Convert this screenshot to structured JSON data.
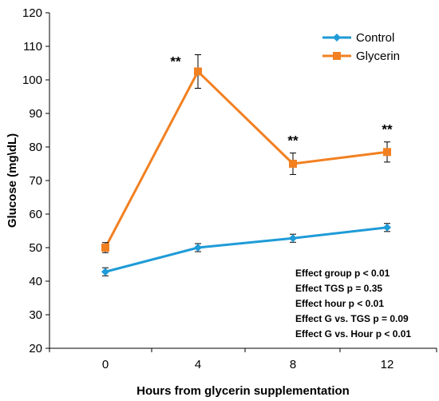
{
  "chart_data": {
    "type": "line",
    "title": "",
    "xlabel": "Hours from glycerin supplementation",
    "ylabel": "Glucose (mg\\dL)",
    "x": [
      0,
      4,
      8,
      12
    ],
    "x_ticks": [
      "0",
      "4",
      "8",
      "12"
    ],
    "ylim": [
      20,
      120
    ],
    "y_ticks": [
      "20",
      "30",
      "40",
      "50",
      "60",
      "70",
      "80",
      "90",
      "100",
      "110",
      "120"
    ],
    "grid": false,
    "legend_position": "top-right",
    "series": [
      {
        "name": "Control",
        "color": "#1f9bd7",
        "marker": "diamond",
        "values": [
          42.8,
          50.0,
          52.8,
          56.0
        ],
        "errors": [
          1.2,
          1.2,
          1.2,
          1.2
        ]
      },
      {
        "name": "Glycerin",
        "color": "#f28021",
        "marker": "square",
        "values": [
          50.0,
          102.5,
          75.0,
          78.5
        ],
        "errors": [
          1.5,
          5.0,
          3.2,
          3.0
        ]
      }
    ],
    "annotations": [
      {
        "text": "**",
        "x": 4
      },
      {
        "text": "**",
        "x": 8
      },
      {
        "text": "**",
        "x": 12
      }
    ],
    "stats": [
      "Effect group  p < 0.01",
      "Effect TGS p = 0.35",
      "Effect hour p < 0.01",
      "Effect G vs. TGS p = 0.09",
      "Effect G vs. Hour p < 0.01"
    ]
  }
}
